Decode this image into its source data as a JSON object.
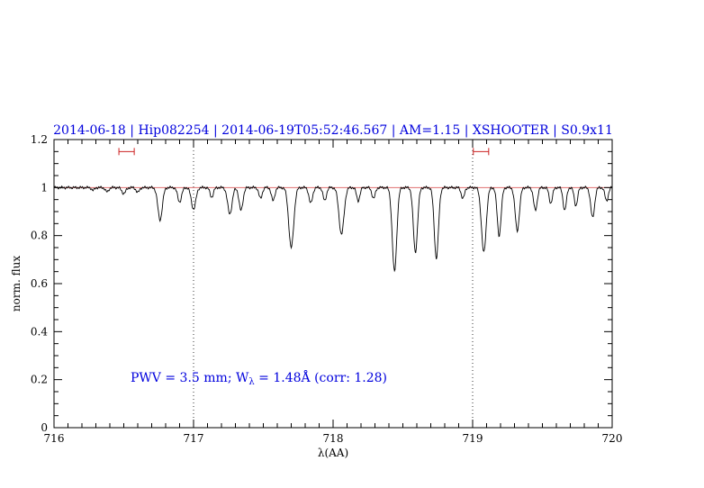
{
  "page": {
    "background": "#ffffff"
  },
  "chart_data": {
    "type": "line",
    "title": "2014-06-18 | Hip082254 | 2014-06-19T05:52:46.567 | AM=1.15 | XSHOOTER | S0.9x11",
    "xlabel": "λ(AA)",
    "ylabel": "norm. flux",
    "xlim": [
      716,
      720
    ],
    "ylim": [
      0,
      1.2
    ],
    "x_major_ticks": [
      716,
      717,
      718,
      719,
      720
    ],
    "x_tick_labels": [
      "716",
      "717",
      "718",
      "719",
      "720"
    ],
    "x_minor_step": 0.1,
    "y_major_ticks": [
      0,
      0.2,
      0.4,
      0.6,
      0.8,
      1.0,
      1.2
    ],
    "y_tick_labels": [
      "0",
      "0.2",
      "0.4",
      "0.6",
      "0.8",
      "1",
      "1.2"
    ],
    "y_minor_step": 0.05,
    "grid": "off",
    "legend": "none",
    "colors": {
      "spectrum": "#000000",
      "continuum_red": "#e07070",
      "marker_red": "#cc2222",
      "text_blue": "#0000dd",
      "axis": "#000000"
    },
    "continuum_level": 1.0,
    "vertical_dotted_lines_x": [
      717,
      719
    ],
    "band_markers": [
      {
        "x_center": 716.52,
        "y": 1.15,
        "half_width": 0.055
      },
      {
        "x_center": 719.06,
        "y": 1.15,
        "half_width": 0.055
      }
    ],
    "annotation": {
      "prefix": "PWV = 3.5 mm; W",
      "sub": "λ",
      "suffix": " = 1.48Å (corr: 1.28)",
      "pwv_mm": 3.5,
      "equivalent_width_A": 1.48,
      "correction": 1.28
    },
    "series": [
      {
        "name": "telluric-spectrum",
        "model": "continuum 1.0 minus gaussian absorption lines",
        "absorption_lines": [
          {
            "center": 716.28,
            "depth": 0.012,
            "sigma": 0.01
          },
          {
            "center": 716.38,
            "depth": 0.018,
            "sigma": 0.012
          },
          {
            "center": 716.5,
            "depth": 0.025,
            "sigma": 0.014
          },
          {
            "center": 716.6,
            "depth": 0.02,
            "sigma": 0.012
          },
          {
            "center": 716.76,
            "depth": 0.135,
            "sigma": 0.016
          },
          {
            "center": 716.9,
            "depth": 0.06,
            "sigma": 0.014
          },
          {
            "center": 717.0,
            "depth": 0.09,
            "sigma": 0.016
          },
          {
            "center": 717.13,
            "depth": 0.04,
            "sigma": 0.012
          },
          {
            "center": 717.26,
            "depth": 0.11,
            "sigma": 0.016
          },
          {
            "center": 717.34,
            "depth": 0.095,
            "sigma": 0.014
          },
          {
            "center": 717.48,
            "depth": 0.045,
            "sigma": 0.012
          },
          {
            "center": 717.57,
            "depth": 0.055,
            "sigma": 0.012
          },
          {
            "center": 717.7,
            "depth": 0.25,
            "sigma": 0.018
          },
          {
            "center": 717.84,
            "depth": 0.065,
            "sigma": 0.013
          },
          {
            "center": 717.94,
            "depth": 0.055,
            "sigma": 0.012
          },
          {
            "center": 718.06,
            "depth": 0.195,
            "sigma": 0.018
          },
          {
            "center": 718.18,
            "depth": 0.055,
            "sigma": 0.012
          },
          {
            "center": 718.29,
            "depth": 0.045,
            "sigma": 0.012
          },
          {
            "center": 718.44,
            "depth": 0.35,
            "sigma": 0.016
          },
          {
            "center": 718.59,
            "depth": 0.27,
            "sigma": 0.015
          },
          {
            "center": 718.74,
            "depth": 0.295,
            "sigma": 0.015
          },
          {
            "center": 718.93,
            "depth": 0.045,
            "sigma": 0.012
          },
          {
            "center": 719.08,
            "depth": 0.27,
            "sigma": 0.017
          },
          {
            "center": 719.19,
            "depth": 0.2,
            "sigma": 0.014
          },
          {
            "center": 719.32,
            "depth": 0.18,
            "sigma": 0.015
          },
          {
            "center": 719.45,
            "depth": 0.095,
            "sigma": 0.013
          },
          {
            "center": 719.56,
            "depth": 0.065,
            "sigma": 0.012
          },
          {
            "center": 719.66,
            "depth": 0.095,
            "sigma": 0.012
          },
          {
            "center": 719.74,
            "depth": 0.075,
            "sigma": 0.012
          },
          {
            "center": 719.86,
            "depth": 0.125,
            "sigma": 0.014
          },
          {
            "center": 719.96,
            "depth": 0.055,
            "sigma": 0.012
          }
        ]
      }
    ]
  }
}
